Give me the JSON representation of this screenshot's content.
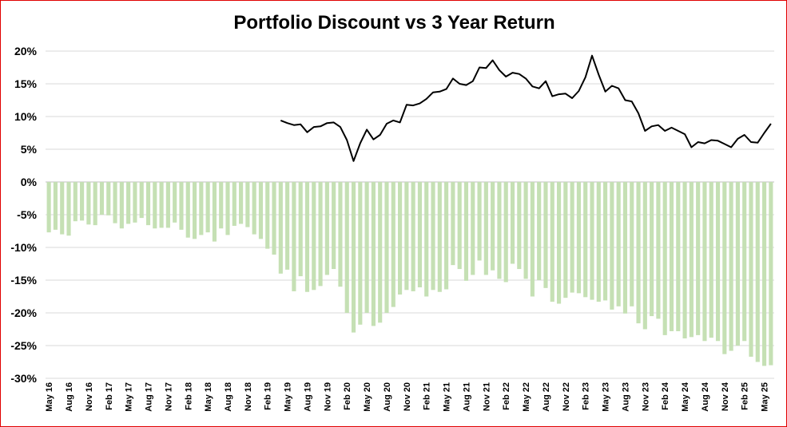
{
  "chart_data": {
    "type": "bar",
    "title": "Portfolio Discount vs 3 Year Return",
    "xlabel": "",
    "ylabel": "",
    "ylim": [
      -0.3,
      0.2
    ],
    "y_ticks": [
      "20%",
      "15%",
      "10%",
      "5%",
      "0%",
      "-5%",
      "-10%",
      "-15%",
      "-20%",
      "-25%",
      "-30%"
    ],
    "grid": true,
    "x_tick_labels": [
      "May 16",
      "Aug 16",
      "Nov 16",
      "Feb 17",
      "May 17",
      "Aug 17",
      "Nov 17",
      "Feb 18",
      "May 18",
      "Aug 18",
      "Nov 18",
      "Feb 19",
      "May 19",
      "Aug 19",
      "Nov 19",
      "Feb 20",
      "May 20",
      "Aug 20",
      "Nov 20",
      "Feb 21",
      "May 21",
      "Aug 21",
      "Nov 21",
      "Feb 22",
      "May 22",
      "Aug 22",
      "Nov 22",
      "Feb 23",
      "May 23",
      "Aug 23",
      "Nov 23",
      "Feb 24",
      "May 24",
      "Aug 24",
      "Nov 24",
      "Feb 25",
      "May 25"
    ],
    "series": [
      {
        "kind": "bar",
        "color": "#c5e0b4",
        "values": [
          -0.077,
          -0.073,
          -0.08,
          -0.082,
          -0.06,
          -0.059,
          -0.065,
          -0.066,
          -0.05,
          -0.051,
          -0.063,
          -0.071,
          -0.064,
          -0.062,
          -0.055,
          -0.066,
          -0.071,
          -0.07,
          -0.07,
          -0.062,
          -0.073,
          -0.085,
          -0.087,
          -0.081,
          -0.077,
          -0.091,
          -0.071,
          -0.081,
          -0.067,
          -0.064,
          -0.069,
          -0.08,
          -0.087,
          -0.102,
          -0.111,
          -0.14,
          -0.134,
          -0.167,
          -0.144,
          -0.168,
          -0.165,
          -0.159,
          -0.142,
          -0.133,
          -0.16,
          -0.2,
          -0.23,
          -0.218,
          -0.2,
          -0.22,
          -0.215,
          -0.2,
          -0.191,
          -0.172,
          -0.165,
          -0.167,
          -0.161,
          -0.175,
          -0.165,
          -0.168,
          -0.164,
          -0.127,
          -0.133,
          -0.151,
          -0.142,
          -0.12,
          -0.142,
          -0.135,
          -0.148,
          -0.153,
          -0.125,
          -0.133,
          -0.148,
          -0.175,
          -0.15,
          -0.162,
          -0.183,
          -0.186,
          -0.177,
          -0.169,
          -0.17,
          -0.176,
          -0.18,
          -0.183,
          -0.181,
          -0.195,
          -0.19,
          -0.201,
          -0.19,
          -0.216,
          -0.225,
          -0.205,
          -0.209,
          -0.234,
          -0.228,
          -0.228,
          -0.239,
          -0.237,
          -0.234,
          -0.243,
          -0.238,
          -0.243,
          -0.263,
          -0.258,
          -0.25,
          -0.243,
          -0.267,
          -0.275,
          -0.281,
          -0.28
        ]
      },
      {
        "kind": "line",
        "color": "#000000",
        "start_index": 35,
        "values": [
          0.094,
          0.09,
          0.087,
          0.088,
          0.076,
          0.084,
          0.085,
          0.09,
          0.091,
          0.084,
          0.064,
          0.032,
          0.059,
          0.08,
          0.065,
          0.072,
          0.089,
          0.094,
          0.091,
          0.118,
          0.117,
          0.12,
          0.127,
          0.137,
          0.138,
          0.142,
          0.158,
          0.15,
          0.148,
          0.154,
          0.175,
          0.174,
          0.186,
          0.171,
          0.161,
          0.167,
          0.165,
          0.158,
          0.146,
          0.143,
          0.154,
          0.131,
          0.134,
          0.135,
          0.128,
          0.139,
          0.16,
          0.193,
          0.164,
          0.138,
          0.147,
          0.143,
          0.125,
          0.123,
          0.105,
          0.078,
          0.085,
          0.087,
          0.078,
          0.083,
          0.078,
          0.073,
          0.053,
          0.061,
          0.059,
          0.064,
          0.063,
          0.058,
          0.053,
          0.066,
          0.072,
          0.061,
          0.06,
          0.075,
          0.089
        ]
      }
    ]
  }
}
